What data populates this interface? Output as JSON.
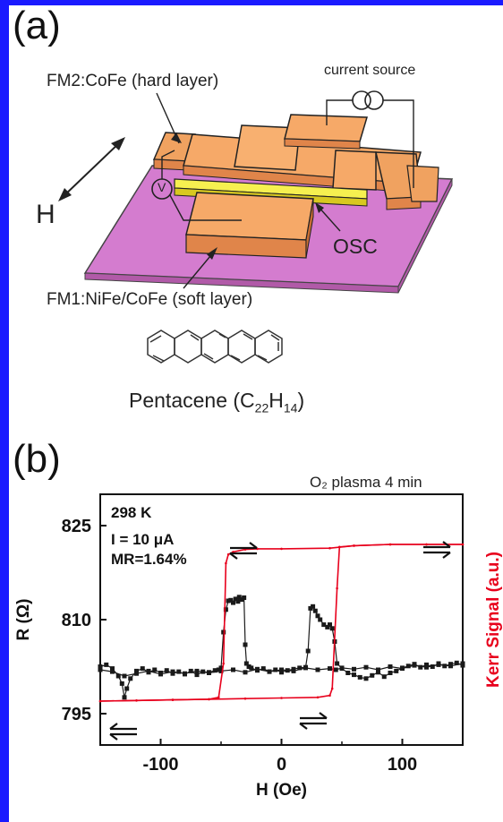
{
  "panel_a": {
    "label": "(a)",
    "fm2_label": "FM2:CoFe (hard layer)",
    "current_source_label": "current source",
    "voltmeter_label": "V",
    "field_label": "H",
    "osc_label": "OSC",
    "fm1_label": "FM1:NiFe/CoFe (soft layer)",
    "molecule_name": "Pentacene",
    "formula": {
      "open": "(C",
      "c_sub": "22",
      "h": "H",
      "h_sub": "14",
      "close": ")"
    }
  },
  "panel_b": {
    "label": "(b)",
    "condition": "O₂ plasma 4 min",
    "temperature": "298 K",
    "current": "I = 10 μA",
    "mr": "MR=1.64%",
    "colors": {
      "resistance": "#1a1a1a",
      "kerr": "#e8001c"
    }
  },
  "chart_data": {
    "type": "scatter",
    "xlabel": "H (Oe)",
    "ylabel": "R (Ω)",
    "y2label": "Kerr Signal (a.u.)",
    "xlim": [
      -150,
      150
    ],
    "ylim": [
      790,
      830
    ],
    "x_ticks": [
      -100,
      0,
      100
    ],
    "x_tick_labels": [
      "-100",
      "0",
      "100"
    ],
    "y_ticks": [
      795,
      810,
      825
    ],
    "y_tick_labels": [
      "795",
      "810",
      "825"
    ],
    "series": [
      {
        "kind": "resistance",
        "points": [
          [
            -150,
            802.5
          ],
          [
            -145,
            802.8
          ],
          [
            -140,
            802.2
          ],
          [
            -135,
            801.0
          ],
          [
            -132,
            799.8
          ],
          [
            -130,
            797.6
          ],
          [
            -128,
            799.0
          ],
          [
            -125,
            800.6
          ],
          [
            -120,
            801.8
          ],
          [
            -115,
            802.2
          ],
          [
            -110,
            801.6
          ],
          [
            -105,
            802.0
          ],
          [
            -100,
            801.5
          ],
          [
            -95,
            801.9
          ],
          [
            -90,
            801.4
          ],
          [
            -85,
            801.7
          ],
          [
            -80,
            801.3
          ],
          [
            -75,
            801.8
          ],
          [
            -70,
            801.2
          ],
          [
            -65,
            801.7
          ],
          [
            -60,
            801.6
          ],
          [
            -55,
            801.9
          ],
          [
            -52,
            802.0
          ],
          [
            -50,
            802.3
          ],
          [
            -48,
            808.0
          ],
          [
            -46,
            811.6
          ],
          [
            -44,
            813.0
          ],
          [
            -42,
            813.1
          ],
          [
            -40,
            812.7
          ],
          [
            -38,
            813.3
          ],
          [
            -36,
            812.9
          ],
          [
            -35,
            813.6
          ],
          [
            -33,
            813.2
          ],
          [
            -31,
            813.5
          ],
          [
            -30,
            806.0
          ],
          [
            -29,
            803.0
          ],
          [
            -27,
            802.5
          ],
          [
            -25,
            802.3
          ],
          [
            -20,
            801.9
          ],
          [
            -15,
            802.2
          ],
          [
            -10,
            801.7
          ],
          [
            -5,
            802.0
          ],
          [
            0,
            801.6
          ],
          [
            5,
            801.9
          ],
          [
            10,
            802.1
          ],
          [
            15,
            802.3
          ],
          [
            20,
            802.4
          ],
          [
            22,
            805.0
          ],
          [
            24,
            811.8
          ],
          [
            26,
            812.1
          ],
          [
            28,
            811.4
          ],
          [
            30,
            810.6
          ],
          [
            32,
            810.0
          ],
          [
            35,
            809.2
          ],
          [
            38,
            808.8
          ],
          [
            40,
            809.2
          ],
          [
            42,
            808.6
          ],
          [
            44,
            806.5
          ],
          [
            46,
            803.0
          ],
          [
            50,
            802.2
          ],
          [
            55,
            801.5
          ],
          [
            60,
            801.2
          ],
          [
            65,
            800.8
          ],
          [
            70,
            800.6
          ],
          [
            75,
            801.1
          ],
          [
            80,
            801.6
          ],
          [
            85,
            800.9
          ],
          [
            90,
            801.5
          ],
          [
            95,
            801.8
          ],
          [
            100,
            802.3
          ],
          [
            105,
            802.6
          ],
          [
            110,
            802.9
          ],
          [
            115,
            802.4
          ],
          [
            120,
            802.8
          ],
          [
            125,
            802.5
          ],
          [
            130,
            803.0
          ],
          [
            135,
            802.6
          ],
          [
            140,
            802.9
          ],
          [
            145,
            803.1
          ],
          [
            150,
            802.7
          ]
        ]
      },
      {
        "kind": "resistance-return",
        "points": [
          [
            150,
            803.0
          ],
          [
            140,
            802.6
          ],
          [
            130,
            802.8
          ],
          [
            120,
            802.4
          ],
          [
            110,
            802.7
          ],
          [
            100,
            802.2
          ],
          [
            90,
            802.5
          ],
          [
            80,
            802.0
          ],
          [
            70,
            802.4
          ],
          [
            60,
            802.1
          ],
          [
            50,
            802.3
          ],
          [
            45,
            802.0
          ],
          [
            40,
            802.2
          ],
          [
            30,
            802.0
          ],
          [
            20,
            802.3
          ],
          [
            10,
            801.8
          ],
          [
            0,
            802.0
          ],
          [
            -10,
            801.7
          ],
          [
            -20,
            802.1
          ],
          [
            -30,
            801.6
          ],
          [
            -40,
            802.0
          ],
          [
            -50,
            801.8
          ],
          [
            -60,
            801.5
          ],
          [
            -70,
            801.8
          ],
          [
            -80,
            801.4
          ],
          [
            -90,
            801.7
          ],
          [
            -100,
            801.3
          ],
          [
            -110,
            801.8
          ],
          [
            -120,
            801.4
          ],
          [
            -130,
            801.0
          ],
          [
            -140,
            801.7
          ],
          [
            -150,
            802.0
          ]
        ]
      },
      {
        "kind": "kerr",
        "points": [
          [
            -150,
            797.0
          ],
          [
            -120,
            797.1
          ],
          [
            -90,
            797.2
          ],
          [
            -60,
            797.3
          ],
          [
            -52,
            797.6
          ],
          [
            -48,
            803.0
          ],
          [
            -46,
            819.0
          ],
          [
            -44,
            820.4
          ],
          [
            -40,
            820.8
          ],
          [
            -30,
            821.2
          ],
          [
            -20,
            821.3
          ],
          [
            0,
            821.3
          ],
          [
            40,
            821.4
          ],
          [
            60,
            821.8
          ],
          [
            90,
            822.0
          ],
          [
            120,
            822.0
          ],
          [
            150,
            822.0
          ]
        ]
      },
      {
        "kind": "kerr-return",
        "points": [
          [
            150,
            822.0
          ],
          [
            120,
            822.0
          ],
          [
            90,
            822.0
          ],
          [
            60,
            821.8
          ],
          [
            48,
            821.6
          ],
          [
            46,
            815.0
          ],
          [
            42,
            799.0
          ],
          [
            40,
            797.9
          ],
          [
            30,
            797.6
          ],
          [
            0,
            797.5
          ],
          [
            -30,
            797.4
          ],
          [
            -60,
            797.3
          ],
          [
            -90,
            797.2
          ],
          [
            -120,
            797.1
          ],
          [
            -150,
            797.0
          ]
        ]
      }
    ]
  }
}
